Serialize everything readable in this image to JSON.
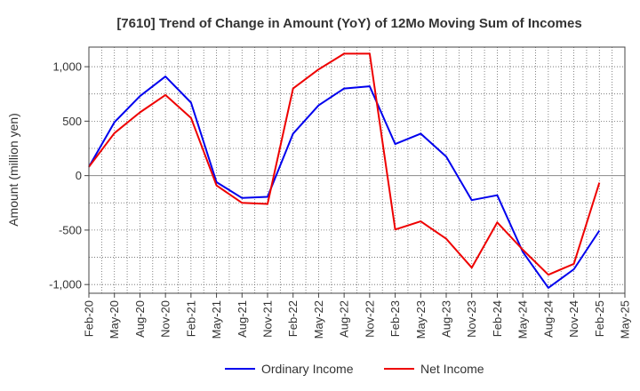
{
  "chart_data": {
    "type": "line",
    "title": "[7610]  Trend of Change in Amount (YoY) of 12Mo Moving Sum of Incomes",
    "xlabel": "",
    "ylabel": "Amount (million yen)",
    "ylim": [
      -1080,
      1180
    ],
    "yticks": [
      {
        "value": 1000,
        "label": "1,000"
      },
      {
        "value": 500,
        "label": "500"
      },
      {
        "value": 0,
        "label": "0"
      },
      {
        "value": -500,
        "label": "-500"
      },
      {
        "value": -1000,
        "label": "-1,000"
      }
    ],
    "x": [
      "Feb-20",
      "May-20",
      "Aug-20",
      "Nov-20",
      "Feb-21",
      "May-21",
      "Aug-21",
      "Nov-21",
      "Feb-22",
      "May-22",
      "Aug-22",
      "Nov-22",
      "Feb-23",
      "May-23",
      "Aug-23",
      "Nov-23",
      "Feb-24",
      "May-24",
      "Aug-24",
      "Nov-24",
      "Feb-25",
      "May-25"
    ],
    "grid": true,
    "legend_position": "bottom",
    "series": [
      {
        "name": "Ordinary Income",
        "color": "#0000ee",
        "values": [
          80,
          490,
          730,
          910,
          670,
          -60,
          -205,
          -195,
          385,
          645,
          800,
          820,
          290,
          385,
          175,
          -225,
          -180,
          -700,
          -1030,
          -860,
          -505,
          null
        ]
      },
      {
        "name": "Net Income",
        "color": "#ee0000",
        "values": [
          80,
          390,
          580,
          740,
          530,
          -90,
          -250,
          -260,
          800,
          975,
          1120,
          1120,
          -495,
          -420,
          -580,
          -845,
          -430,
          -680,
          -910,
          -810,
          -65,
          null
        ]
      }
    ]
  }
}
